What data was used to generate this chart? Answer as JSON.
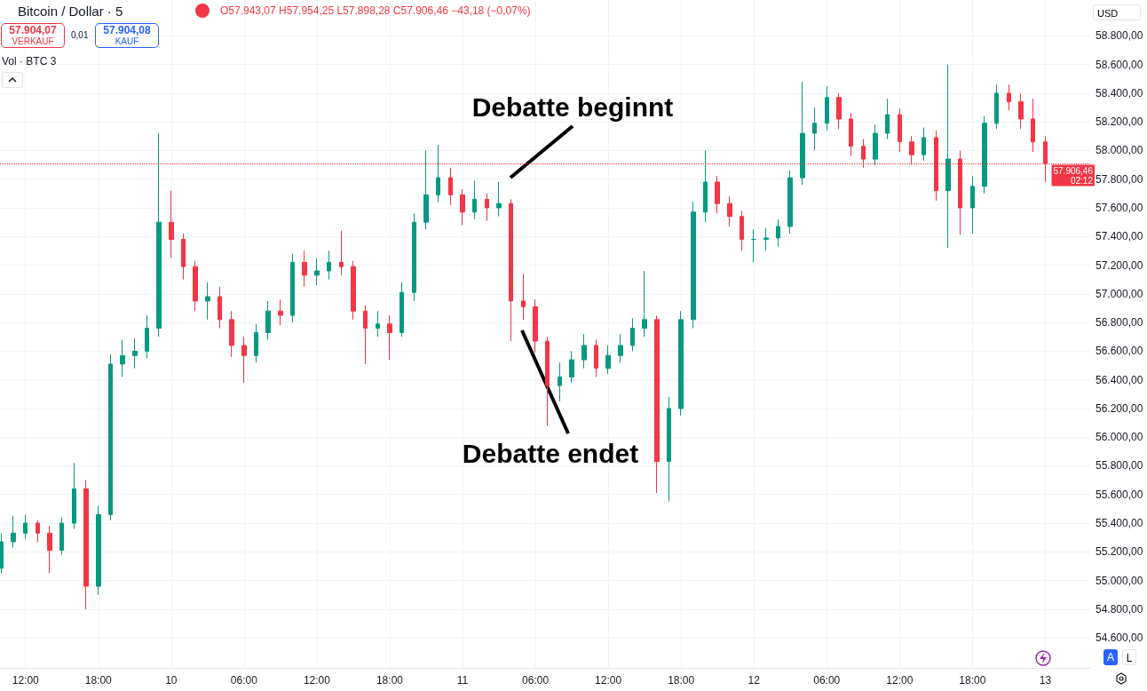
{
  "chart_data": {
    "type": "candlestick",
    "title": "Bitcoin / Dollar · 5",
    "colors": [
      "#089981",
      "#089981",
      "#089981",
      "#f23645",
      "#f23645",
      "#089981",
      "#089981",
      "#f23645",
      "#089981",
      "#089981",
      "#089981",
      "#089981",
      "#089981",
      "#089981",
      "#f23645",
      "#f23645",
      "#f23645",
      "#089981",
      "#f23645",
      "#f23645",
      "#f23645",
      "#089981",
      "#089981",
      "#f23645",
      "#089981",
      "#f23645",
      "#089981",
      "#089981",
      "#f23645",
      "#f23645",
      "#f23645",
      "#089981",
      "#f23645",
      "#089981",
      "#089981",
      "#089981",
      "#089981",
      "#f23645",
      "#f23645",
      "#089981",
      "#f23645",
      "#089981",
      "#f23645",
      "#f23645",
      "#f23645",
      "#f23645",
      "#089981",
      "#089981",
      "#089981",
      "#f23645",
      "#089981",
      "#089981",
      "#089981",
      "#089981",
      "#f23645",
      "#089981",
      "#089981",
      "#089981",
      "#089981",
      "#f23645",
      "#f23645",
      "#f23645",
      "#089981",
      "#089981",
      "#089981",
      "#089981",
      "#089981",
      "#089981",
      "#089981",
      "#f23645",
      "#f23645",
      "#f23645",
      "#089981",
      "#089981",
      "#f23645",
      "#f23645",
      "#089981",
      "#f23645",
      "#089981",
      "#f23645",
      "#089981",
      "#089981",
      "#089981",
      "#f23645",
      "#f23645",
      "#f23645",
      "#f23645"
    ],
    "x": [
      "--09-09T10:00",
      "--09-09T11:00",
      "--09-09T12:00",
      "--09-09T13:00",
      "--09-09T14:00",
      "--09-09T15:00",
      "--09-09T16:00",
      "--09-09T17:00",
      "--09-09T18:00",
      "--09-09T19:00",
      "--09-09T20:00",
      "--09-09T21:00",
      "--09-09T22:00",
      "--09-09T23:00",
      "--09-10T00:00",
      "--09-10T01:00",
      "--09-10T02:00",
      "--09-10T03:00",
      "--09-10T04:00",
      "--09-10T05:00",
      "--09-10T06:00",
      "--09-10T07:00",
      "--09-10T08:00",
      "--09-10T09:00",
      "--09-10T10:00",
      "--09-10T11:00",
      "--09-10T12:00",
      "--09-10T13:00",
      "--09-10T14:00",
      "--09-10T15:00",
      "--09-10T16:00",
      "--09-10T17:00",
      "--09-10T18:00",
      "--09-10T19:00",
      "--09-10T20:00",
      "--09-10T21:00",
      "--09-10T22:00",
      "--09-10T23:00",
      "--09-11T00:00",
      "--09-11T01:00",
      "--09-11T02:00",
      "--09-11T03:00",
      "--09-11T04:00",
      "--09-11T05:00",
      "--09-11T06:00",
      "--09-11T07:00",
      "--09-11T08:00",
      "--09-11T09:00",
      "--09-11T10:00",
      "--09-11T11:00",
      "--09-11T12:00",
      "--09-11T13:00",
      "--09-11T14:00",
      "--09-11T15:00",
      "--09-11T16:00",
      "--09-11T17:00",
      "--09-11T18:00",
      "--09-11T19:00",
      "--09-11T20:00",
      "--09-11T21:00",
      "--09-11T22:00",
      "--09-11T23:00",
      "--09-12T00:00",
      "--09-12T01:00",
      "--09-12T02:00",
      "--09-12T03:00",
      "--09-12T04:00",
      "--09-12T05:00",
      "--09-12T06:00",
      "--09-12T07:00",
      "--09-12T08:00",
      "--09-12T09:00",
      "--09-12T10:00",
      "--09-12T11:00",
      "--09-12T12:00",
      "--09-12T13:00",
      "--09-12T14:00",
      "--09-12T15:00",
      "--09-12T16:00",
      "--09-12T17:00",
      "--09-12T18:00",
      "--09-12T19:00",
      "--09-12T20:00",
      "--09-12T21:00",
      "--09-12T22:00",
      "--09-12T23:00",
      "--09-13T00:00"
    ],
    "ohlc": [
      [
        55085,
        55330,
        55050,
        55270
      ],
      [
        55270,
        55450,
        55230,
        55330
      ],
      [
        55330,
        55460,
        55290,
        55400
      ],
      [
        55400,
        55420,
        55270,
        55330
      ],
      [
        55330,
        55380,
        55050,
        55210
      ],
      [
        55210,
        55440,
        55180,
        55400
      ],
      [
        55400,
        55820,
        55360,
        55640
      ],
      [
        55640,
        55700,
        54800,
        54960
      ],
      [
        54960,
        55520,
        54900,
        55460
      ],
      [
        55460,
        56580,
        55420,
        56510
      ],
      [
        56510,
        56680,
        56420,
        56570
      ],
      [
        56570,
        56690,
        56480,
        56600
      ],
      [
        56600,
        56850,
        56550,
        56760
      ],
      [
        56760,
        58120,
        56700,
        57500
      ],
      [
        57500,
        57720,
        57250,
        57380
      ],
      [
        57380,
        57420,
        57100,
        57190
      ],
      [
        57190,
        57230,
        56880,
        56950
      ],
      [
        56950,
        57080,
        56820,
        56980
      ],
      [
        56980,
        57050,
        56760,
        56820
      ],
      [
        56820,
        56880,
        56560,
        56640
      ],
      [
        56640,
        56700,
        56380,
        56570
      ],
      [
        56570,
        56790,
        56520,
        56730
      ],
      [
        56730,
        56950,
        56680,
        56880
      ],
      [
        56880,
        56960,
        56780,
        56850
      ],
      [
        56850,
        57280,
        56800,
        57220
      ],
      [
        57220,
        57300,
        57050,
        57130
      ],
      [
        57130,
        57250,
        57060,
        57160
      ],
      [
        57160,
        57300,
        57100,
        57220
      ],
      [
        57220,
        57440,
        57130,
        57190
      ],
      [
        57190,
        57230,
        56820,
        56880
      ],
      [
        56880,
        56920,
        56510,
        56760
      ],
      [
        56760,
        56880,
        56700,
        56790
      ],
      [
        56790,
        56850,
        56540,
        56730
      ],
      [
        56730,
        57080,
        56700,
        57010
      ],
      [
        57010,
        57560,
        56950,
        57500
      ],
      [
        57500,
        58000,
        57450,
        57690
      ],
      [
        57690,
        58040,
        57640,
        57810
      ],
      [
        57810,
        57880,
        57620,
        57690
      ],
      [
        57690,
        57730,
        57480,
        57570
      ],
      [
        57570,
        57790,
        57520,
        57660
      ],
      [
        57660,
        57700,
        57510,
        57600
      ],
      [
        57600,
        57780,
        57540,
        57630
      ],
      [
        57630,
        57660,
        56670,
        56950
      ],
      [
        56950,
        57140,
        56820,
        56910
      ],
      [
        56910,
        56960,
        56590,
        56670
      ],
      [
        56670,
        56700,
        56080,
        56360
      ],
      [
        56360,
        56520,
        56250,
        56420
      ],
      [
        56420,
        56600,
        56380,
        56540
      ],
      [
        56540,
        56720,
        56480,
        56640
      ],
      [
        56640,
        56680,
        56420,
        56480
      ],
      [
        56480,
        56640,
        56440,
        56570
      ],
      [
        56570,
        56720,
        56520,
        56640
      ],
      [
        56640,
        56830,
        56600,
        56760
      ],
      [
        56760,
        57160,
        56700,
        56820
      ],
      [
        56820,
        56850,
        55610,
        55830
      ],
      [
        55830,
        56280,
        55550,
        56200
      ],
      [
        56200,
        56880,
        56150,
        56820
      ],
      [
        56820,
        57640,
        56760,
        57570
      ],
      [
        57570,
        58000,
        57500,
        57780
      ],
      [
        57780,
        57820,
        57560,
        57630
      ],
      [
        57630,
        57680,
        57470,
        57540
      ],
      [
        57540,
        57580,
        57300,
        57380
      ],
      [
        57380,
        57450,
        57220,
        57380
      ],
      [
        57380,
        57460,
        57300,
        57390
      ],
      [
        57390,
        57520,
        57330,
        57470
      ],
      [
        57470,
        57860,
        57420,
        57810
      ],
      [
        57810,
        58480,
        57760,
        58120
      ],
      [
        58120,
        58300,
        58000,
        58190
      ],
      [
        58190,
        58450,
        58140,
        58370
      ],
      [
        58370,
        58400,
        58150,
        58220
      ],
      [
        58220,
        58260,
        57960,
        58030
      ],
      [
        58030,
        58080,
        57880,
        57940
      ],
      [
        57940,
        58180,
        57900,
        58120
      ],
      [
        58120,
        58360,
        58080,
        58250
      ],
      [
        58250,
        58290,
        57990,
        58060
      ],
      [
        58060,
        58100,
        57900,
        57970
      ],
      [
        57970,
        58160,
        57930,
        58090
      ],
      [
        58090,
        58140,
        57650,
        57720
      ],
      [
        57720,
        58600,
        57320,
        57940
      ],
      [
        57940,
        58000,
        57410,
        57600
      ],
      [
        57600,
        57820,
        57420,
        57750
      ],
      [
        57750,
        58240,
        57700,
        58190
      ],
      [
        58190,
        58460,
        58150,
        58400
      ],
      [
        58400,
        58460,
        58280,
        58340
      ],
      [
        58340,
        58400,
        58150,
        58220
      ],
      [
        58220,
        58360,
        57990,
        58060
      ],
      [
        58060,
        58100,
        57780,
        57910
      ]
    ],
    "xlim": [
      "--09-09T09:54",
      "--09-13T03:42"
    ],
    "xticks": [
      {
        "value": "--09-09T12:00",
        "label": "12:00"
      },
      {
        "value": "--09-09T18:00",
        "label": "18:00"
      },
      {
        "value": "--09-10T00:00",
        "label": "10"
      },
      {
        "value": "--09-10T06:00",
        "label": "06:00"
      },
      {
        "value": "--09-10T12:00",
        "label": "12:00"
      },
      {
        "value": "--09-10T18:00",
        "label": "18:00"
      },
      {
        "value": "--09-11T00:00",
        "label": "11"
      },
      {
        "value": "--09-11T06:00",
        "label": "06:00"
      },
      {
        "value": "--09-11T12:00",
        "label": "12:00"
      },
      {
        "value": "--09-11T18:00",
        "label": "18:00"
      },
      {
        "value": "--09-12T00:00",
        "label": "12"
      },
      {
        "value": "--09-12T06:00",
        "label": "06:00"
      },
      {
        "value": "--09-12T12:00",
        "label": "12:00"
      },
      {
        "value": "--09-12T18:00",
        "label": "18:00"
      },
      {
        "value": "--09-13T00:00",
        "label": "13"
      }
    ],
    "ylim": [
      54390,
      59050
    ],
    "yticks": [
      {
        "value": 54600,
        "label": "54.600,00"
      },
      {
        "value": 54800,
        "label": "54.800,00"
      },
      {
        "value": 55000,
        "label": "55.000,00"
      },
      {
        "value": 55200,
        "label": "55.200,00"
      },
      {
        "value": 55400,
        "label": "55.400,00"
      },
      {
        "value": 55600,
        "label": "55.600,00"
      },
      {
        "value": 55800,
        "label": "55.800,00"
      },
      {
        "value": 56000,
        "label": "56.000,00"
      },
      {
        "value": 56200,
        "label": "56.200,00"
      },
      {
        "value": 56400,
        "label": "56.400,00"
      },
      {
        "value": 56600,
        "label": "56.600,00"
      },
      {
        "value": 56800,
        "label": "56.800,00"
      },
      {
        "value": 57000,
        "label": "57.000,00"
      },
      {
        "value": 57200,
        "label": "57.200,00"
      },
      {
        "value": 57400,
        "label": "57.400,00"
      },
      {
        "value": 57600,
        "label": "57.600,00"
      },
      {
        "value": 57800,
        "label": "57.800,00"
      },
      {
        "value": 58000,
        "label": "58.000,00"
      },
      {
        "value": 58200,
        "label": "58.200,00"
      },
      {
        "value": 58400,
        "label": "58.400,00"
      },
      {
        "value": 58600,
        "label": "58.600,00"
      },
      {
        "value": 58800,
        "label": "58.800,00"
      }
    ],
    "grid": true,
    "ref_lines": [
      {
        "axis": "y",
        "value": 57906.46,
        "label": "57.906,46\n02:12",
        "color": "#f23645",
        "line_style": "dotted"
      }
    ],
    "annotations": [
      "Debatte beginnt",
      "Debatte endet",
      "O57.943,07 H57.954,25 L57.898,28 C57.906,46 −43,18 (−0,07%)",
      "57.904,07",
      "VERKAUF",
      "0,01",
      "57.904,08",
      "KAUF",
      "Vol · BTC 3",
      "USD",
      "A",
      "L"
    ]
  }
}
